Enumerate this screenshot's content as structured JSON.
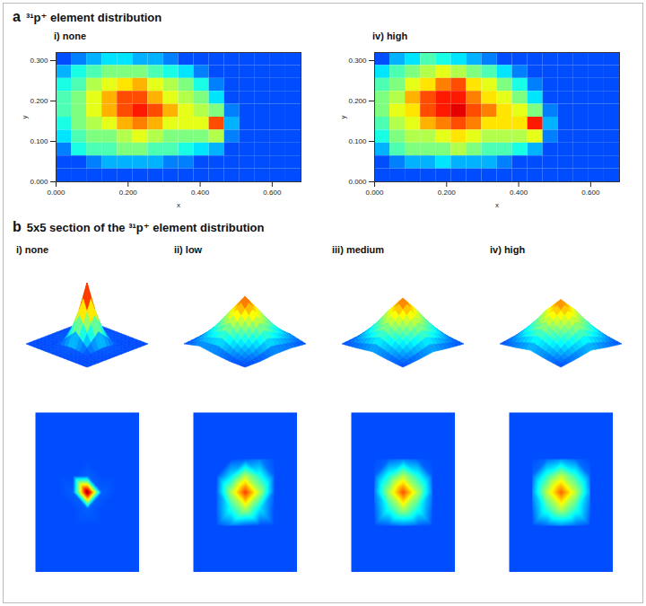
{
  "figure": {
    "panels": [
      {
        "letter": "a",
        "title": "³¹p⁺ element distribution"
      },
      {
        "letter": "b",
        "title": "5x5 section of the ³¹p⁺ element distribution"
      }
    ]
  },
  "chart_data": [
    {
      "type": "heatmap",
      "panel": "a",
      "title": "i) none",
      "xlabel": "x",
      "ylabel": "y",
      "xlim": [
        0,
        0.68
      ],
      "ylim": [
        0,
        0.32
      ],
      "xticks": [
        {
          "value": 0,
          "label": "0.000"
        },
        {
          "value": 0.2,
          "label": "0.200"
        },
        {
          "value": 0.4,
          "label": "0.400"
        },
        {
          "value": 0.6,
          "label": "0.600"
        }
      ],
      "yticks": [
        {
          "value": 0,
          "label": "0.000"
        },
        {
          "value": 0.1,
          "label": "0.100"
        },
        {
          "value": 0.2,
          "label": "0.200"
        },
        {
          "value": 0.3,
          "label": "0.300"
        }
      ],
      "zlim": [
        0,
        1
      ],
      "x": [
        0.02125,
        0.06375,
        0.10625,
        0.14875,
        0.19125,
        0.23375,
        0.27625,
        0.31875,
        0.36125,
        0.40375,
        0.44625,
        0.48875,
        0.53125,
        0.57375,
        0.61625,
        0.65875
      ],
      "y": [
        0.304,
        0.272,
        0.24,
        0.208,
        0.176,
        0.144,
        0.112,
        0.08,
        0.048,
        0.016
      ],
      "z": [
        [
          0.2,
          0.25,
          0.3,
          0.35,
          0.35,
          0.3,
          0.3,
          0.25,
          0.2,
          0.2,
          0.2,
          0.2,
          0.2,
          0.2,
          0.2,
          0.2
        ],
        [
          0.3,
          0.4,
          0.45,
          0.5,
          0.5,
          0.5,
          0.45,
          0.4,
          0.35,
          0.25,
          0.2,
          0.2,
          0.2,
          0.2,
          0.2,
          0.2
        ],
        [
          0.4,
          0.45,
          0.55,
          0.6,
          0.65,
          0.7,
          0.6,
          0.55,
          0.5,
          0.4,
          0.25,
          0.2,
          0.2,
          0.2,
          0.2,
          0.2
        ],
        [
          0.45,
          0.5,
          0.6,
          0.7,
          0.8,
          0.8,
          0.7,
          0.6,
          0.55,
          0.5,
          0.35,
          0.2,
          0.2,
          0.2,
          0.2,
          0.2
        ],
        [
          0.45,
          0.5,
          0.6,
          0.7,
          0.8,
          0.85,
          0.8,
          0.7,
          0.6,
          0.55,
          0.5,
          0.25,
          0.2,
          0.2,
          0.2,
          0.2
        ],
        [
          0.4,
          0.5,
          0.55,
          0.6,
          0.7,
          0.75,
          0.7,
          0.6,
          0.6,
          0.6,
          0.8,
          0.3,
          0.2,
          0.2,
          0.2,
          0.2
        ],
        [
          0.35,
          0.45,
          0.5,
          0.5,
          0.55,
          0.6,
          0.55,
          0.5,
          0.5,
          0.5,
          0.55,
          0.25,
          0.2,
          0.2,
          0.2,
          0.2
        ],
        [
          0.25,
          0.4,
          0.45,
          0.45,
          0.5,
          0.5,
          0.45,
          0.45,
          0.4,
          0.35,
          0.3,
          0.2,
          0.2,
          0.2,
          0.2,
          0.2
        ],
        [
          0.2,
          0.2,
          0.25,
          0.3,
          0.3,
          0.3,
          0.3,
          0.25,
          0.25,
          0.2,
          0.2,
          0.2,
          0.2,
          0.2,
          0.2,
          0.2
        ],
        [
          0.2,
          0.2,
          0.2,
          0.2,
          0.2,
          0.2,
          0.2,
          0.2,
          0.2,
          0.2,
          0.2,
          0.2,
          0.2,
          0.2,
          0.2,
          0.2
        ]
      ]
    },
    {
      "type": "heatmap",
      "panel": "a",
      "title": "iv) high",
      "xlabel": "x",
      "ylabel": "y",
      "xlim": [
        0,
        0.68
      ],
      "ylim": [
        0,
        0.32
      ],
      "xticks": [
        {
          "value": 0,
          "label": "0.000"
        },
        {
          "value": 0.2,
          "label": "0.200"
        },
        {
          "value": 0.4,
          "label": "0.400"
        },
        {
          "value": 0.6,
          "label": "0.600"
        }
      ],
      "yticks": [
        {
          "value": 0,
          "label": "0.000"
        },
        {
          "value": 0.1,
          "label": "0.100"
        },
        {
          "value": 0.2,
          "label": "0.200"
        },
        {
          "value": 0.3,
          "label": "0.300"
        }
      ],
      "zlim": [
        0,
        1
      ],
      "x": [
        0.02125,
        0.06375,
        0.10625,
        0.14875,
        0.19125,
        0.23375,
        0.27625,
        0.31875,
        0.36125,
        0.40375,
        0.44625,
        0.48875,
        0.53125,
        0.57375,
        0.61625,
        0.65875
      ],
      "y": [
        0.304,
        0.272,
        0.24,
        0.208,
        0.176,
        0.144,
        0.112,
        0.08,
        0.048,
        0.016
      ],
      "z": [
        [
          0.2,
          0.3,
          0.35,
          0.45,
          0.4,
          0.35,
          0.3,
          0.25,
          0.2,
          0.2,
          0.2,
          0.2,
          0.2,
          0.2,
          0.2,
          0.2
        ],
        [
          0.35,
          0.45,
          0.5,
          0.55,
          0.6,
          0.55,
          0.5,
          0.45,
          0.35,
          0.25,
          0.2,
          0.2,
          0.2,
          0.2,
          0.2,
          0.2
        ],
        [
          0.45,
          0.5,
          0.6,
          0.65,
          0.75,
          0.8,
          0.65,
          0.6,
          0.5,
          0.4,
          0.25,
          0.2,
          0.2,
          0.2,
          0.2,
          0.2
        ],
        [
          0.5,
          0.55,
          0.7,
          0.8,
          0.85,
          0.85,
          0.75,
          0.65,
          0.6,
          0.5,
          0.35,
          0.2,
          0.2,
          0.2,
          0.2,
          0.2
        ],
        [
          0.5,
          0.6,
          0.65,
          0.8,
          0.85,
          0.9,
          0.8,
          0.75,
          0.65,
          0.6,
          0.5,
          0.25,
          0.2,
          0.2,
          0.2,
          0.2
        ],
        [
          0.45,
          0.55,
          0.6,
          0.7,
          0.75,
          0.8,
          0.75,
          0.65,
          0.65,
          0.65,
          0.85,
          0.3,
          0.2,
          0.2,
          0.2,
          0.2
        ],
        [
          0.4,
          0.5,
          0.55,
          0.55,
          0.6,
          0.65,
          0.6,
          0.55,
          0.55,
          0.55,
          0.6,
          0.25,
          0.2,
          0.2,
          0.2,
          0.2
        ],
        [
          0.3,
          0.45,
          0.5,
          0.5,
          0.5,
          0.55,
          0.5,
          0.45,
          0.45,
          0.4,
          0.3,
          0.2,
          0.2,
          0.2,
          0.2,
          0.2
        ],
        [
          0.2,
          0.25,
          0.3,
          0.3,
          0.35,
          0.3,
          0.3,
          0.3,
          0.25,
          0.2,
          0.2,
          0.2,
          0.2,
          0.2,
          0.2,
          0.2
        ],
        [
          0.2,
          0.2,
          0.2,
          0.2,
          0.2,
          0.2,
          0.2,
          0.2,
          0.2,
          0.2,
          0.2,
          0.2,
          0.2,
          0.2,
          0.2,
          0.2
        ]
      ]
    },
    {
      "type": "surface",
      "panel": "b",
      "title": "i) none",
      "zlim": [
        0,
        1
      ],
      "z": [
        [
          0.2,
          0.2,
          0.2,
          0.2,
          0.2
        ],
        [
          0.2,
          0.2,
          0.22,
          0.2,
          0.2
        ],
        [
          0.2,
          0.22,
          1.0,
          0.22,
          0.2
        ],
        [
          0.2,
          0.2,
          0.22,
          0.2,
          0.2
        ],
        [
          0.2,
          0.2,
          0.2,
          0.2,
          0.2
        ]
      ]
    },
    {
      "type": "surface",
      "panel": "b",
      "title": "ii) low",
      "zlim": [
        0,
        1
      ],
      "z": [
        [
          0.2,
          0.2,
          0.22,
          0.25,
          0.2
        ],
        [
          0.2,
          0.35,
          0.55,
          0.4,
          0.22
        ],
        [
          0.22,
          0.55,
          0.82,
          0.55,
          0.22
        ],
        [
          0.22,
          0.4,
          0.55,
          0.35,
          0.2
        ],
        [
          0.2,
          0.25,
          0.22,
          0.2,
          0.2
        ]
      ]
    },
    {
      "type": "surface",
      "panel": "b",
      "title": "iii) medium",
      "zlim": [
        0,
        1
      ],
      "z": [
        [
          0.2,
          0.22,
          0.25,
          0.22,
          0.2
        ],
        [
          0.22,
          0.4,
          0.55,
          0.4,
          0.22
        ],
        [
          0.25,
          0.55,
          0.8,
          0.55,
          0.25
        ],
        [
          0.22,
          0.4,
          0.55,
          0.4,
          0.22
        ],
        [
          0.2,
          0.22,
          0.25,
          0.22,
          0.2
        ]
      ]
    },
    {
      "type": "surface",
      "panel": "b",
      "title": "iv) high",
      "zlim": [
        0,
        1
      ],
      "z": [
        [
          0.2,
          0.23,
          0.27,
          0.23,
          0.2
        ],
        [
          0.23,
          0.42,
          0.56,
          0.42,
          0.23
        ],
        [
          0.27,
          0.56,
          0.78,
          0.56,
          0.27
        ],
        [
          0.23,
          0.42,
          0.56,
          0.42,
          0.23
        ],
        [
          0.2,
          0.23,
          0.27,
          0.23,
          0.2
        ]
      ]
    }
  ]
}
